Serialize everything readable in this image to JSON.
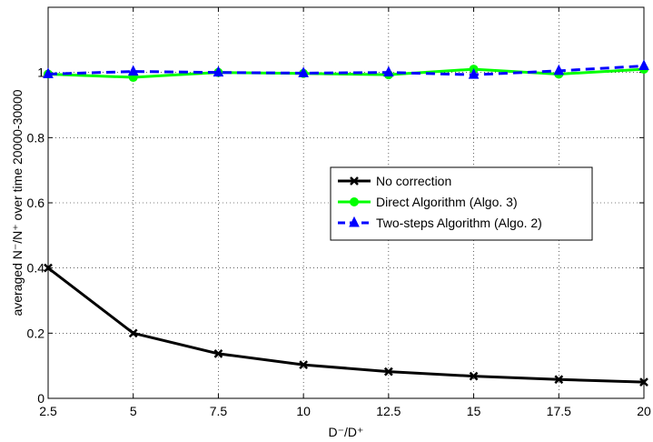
{
  "chart_data": {
    "type": "line",
    "title": "",
    "xlabel": "D⁻/D⁺",
    "ylabel": "averaged N⁻/N⁺ over time 20000-30000",
    "x": [
      2.5,
      5,
      7.5,
      10,
      12.5,
      15,
      17.5,
      20
    ],
    "xtick_labels": [
      "2.5",
      "5",
      "7.5",
      "10",
      "12.5",
      "15",
      "17.5",
      "20"
    ],
    "ytick_values": [
      0,
      0.2,
      0.4,
      0.6,
      0.8,
      1
    ],
    "ytick_labels": [
      "0",
      "0.2",
      "0.4",
      "0.6",
      "0.8",
      "1"
    ],
    "xlim": [
      2.5,
      20
    ],
    "ylim": [
      0,
      1.2
    ],
    "grid": true,
    "legend_position": "center-right",
    "series": [
      {
        "name": "No correction",
        "color": "#000000",
        "marker": "x",
        "dashed": false,
        "values": [
          0.4,
          0.2,
          0.137,
          0.103,
          0.082,
          0.068,
          0.058,
          0.05
        ]
      },
      {
        "name": "Direct Algorithm (Algo. 3)",
        "color": "#00ff00",
        "marker": "circle",
        "dashed": false,
        "values": [
          0.995,
          0.985,
          1.0,
          0.997,
          0.993,
          1.01,
          0.995,
          1.01
        ]
      },
      {
        "name": "Two-steps Algorithm (Algo. 2)",
        "color": "#0000ff",
        "marker": "triangle",
        "dashed": true,
        "values": [
          0.995,
          1.003,
          1.0,
          0.998,
          1.0,
          0.993,
          1.005,
          1.02
        ]
      }
    ]
  }
}
